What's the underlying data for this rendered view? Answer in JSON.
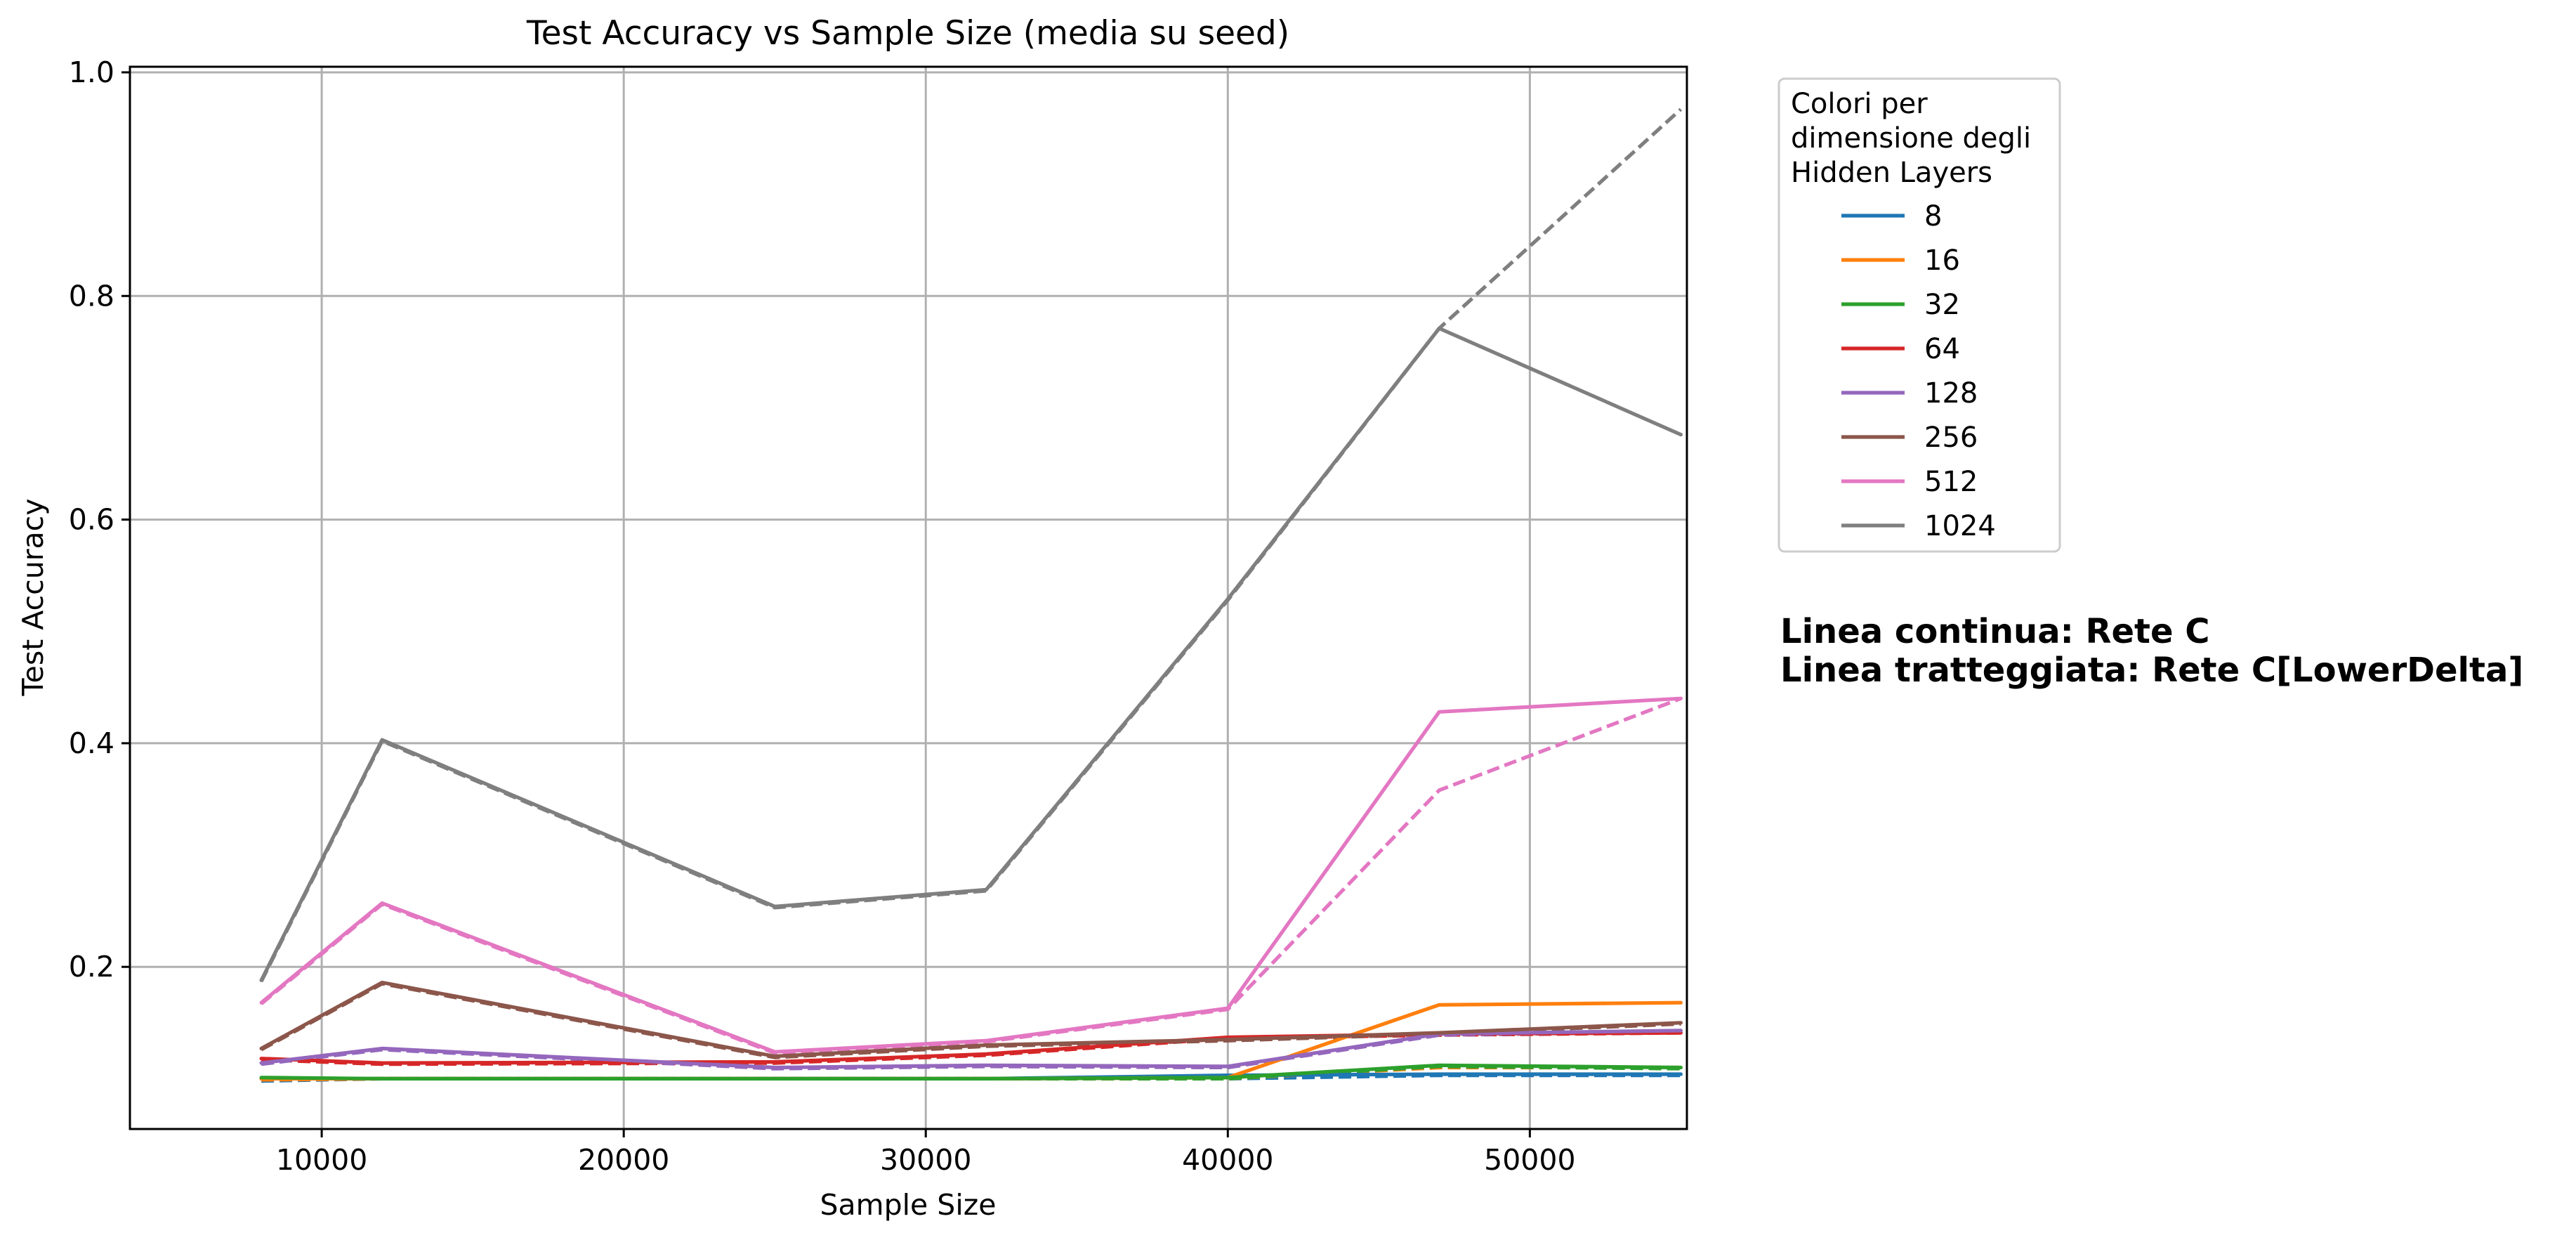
{
  "chart_data": {
    "type": "line",
    "title": "Test Accuracy vs Sample Size (media su seed)",
    "xlabel": "Sample Size",
    "ylabel": "Test Accuracy",
    "xlim": [
      3650,
      55200
    ],
    "ylim": [
      0.055,
      1.005
    ],
    "xticks": [
      10000,
      20000,
      30000,
      40000,
      50000
    ],
    "yticks": [
      0.2,
      0.4,
      0.6,
      0.8,
      1.0
    ],
    "grid": true,
    "legend": {
      "title_lines": [
        "Colori per",
        "dimensione degli",
        "Hidden Layers"
      ],
      "placement": "outside-upper-right",
      "entries": [
        "8",
        "16",
        "32",
        "64",
        "128",
        "256",
        "512",
        "1024"
      ]
    },
    "annotations": [
      "Linea continua: Rete C",
      "Linea tratteggiata: Rete C[LowerDelta]"
    ],
    "x": [
      8000,
      12000,
      25000,
      32000,
      40000,
      47000,
      55000
    ],
    "series": [
      {
        "name": "8",
        "color": "#1f77b4",
        "style": "solid",
        "values": [
          0.1,
          0.1,
          0.1,
          0.1,
          0.103,
          0.104,
          0.104
        ]
      },
      {
        "name": "8",
        "color": "#1f77b4",
        "style": "dashed",
        "values": [
          0.098,
          0.1,
          0.1,
          0.1,
          0.1,
          0.103,
          0.103
        ]
      },
      {
        "name": "16",
        "color": "#ff7f0e",
        "style": "solid",
        "values": [
          0.1,
          0.1,
          0.1,
          0.1,
          0.101,
          0.166,
          0.168
        ]
      },
      {
        "name": "16",
        "color": "#ff7f0e",
        "style": "dashed",
        "values": [
          0.099,
          0.1,
          0.1,
          0.1,
          0.1,
          0.11,
          0.11
        ]
      },
      {
        "name": "32",
        "color": "#2ca02c",
        "style": "solid",
        "values": [
          0.101,
          0.1,
          0.1,
          0.1,
          0.101,
          0.112,
          0.11
        ]
      },
      {
        "name": "32",
        "color": "#2ca02c",
        "style": "dashed",
        "values": [
          0.1,
          0.1,
          0.1,
          0.1,
          0.1,
          0.111,
          0.109
        ]
      },
      {
        "name": "64",
        "color": "#d62728",
        "style": "solid",
        "values": [
          0.118,
          0.114,
          0.115,
          0.122,
          0.137,
          0.14,
          0.141
        ]
      },
      {
        "name": "64",
        "color": "#d62728",
        "style": "dashed",
        "values": [
          0.117,
          0.113,
          0.114,
          0.121,
          0.136,
          0.139,
          0.141
        ]
      },
      {
        "name": "128",
        "color": "#9467bd",
        "style": "solid",
        "values": [
          0.114,
          0.127,
          0.11,
          0.112,
          0.111,
          0.14,
          0.143
        ]
      },
      {
        "name": "128",
        "color": "#9467bd",
        "style": "dashed",
        "values": [
          0.113,
          0.126,
          0.109,
          0.111,
          0.11,
          0.139,
          0.142
        ]
      },
      {
        "name": "256",
        "color": "#8c564b",
        "style": "solid",
        "values": [
          0.127,
          0.186,
          0.12,
          0.13,
          0.135,
          0.141,
          0.15
        ]
      },
      {
        "name": "256",
        "color": "#8c564b",
        "style": "dashed",
        "values": [
          0.126,
          0.185,
          0.119,
          0.129,
          0.134,
          0.14,
          0.149
        ]
      },
      {
        "name": "512",
        "color": "#e377c2",
        "style": "solid",
        "values": [
          0.168,
          0.257,
          0.124,
          0.134,
          0.163,
          0.428,
          0.44
        ]
      },
      {
        "name": "512",
        "color": "#e377c2",
        "style": "dashed",
        "values": [
          0.167,
          0.256,
          0.123,
          0.133,
          0.162,
          0.358,
          0.44
        ]
      },
      {
        "name": "1024",
        "color": "#7f7f7f",
        "style": "solid",
        "values": [
          0.188,
          0.403,
          0.254,
          0.269,
          0.529,
          0.771,
          0.676
        ]
      },
      {
        "name": "1024",
        "color": "#7f7f7f",
        "style": "dashed",
        "values": [
          0.187,
          0.402,
          0.253,
          0.268,
          0.528,
          0.771,
          0.967
        ]
      }
    ]
  }
}
